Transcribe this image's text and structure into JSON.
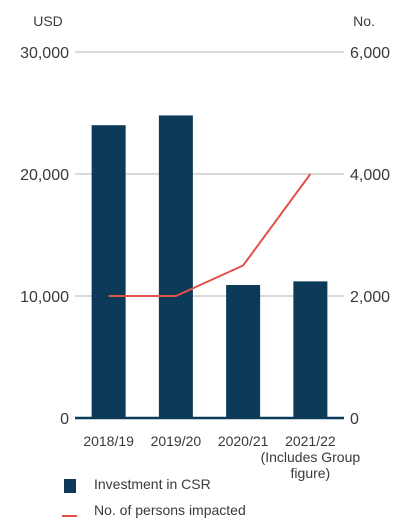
{
  "chart_data": {
    "type": "bar",
    "categories": [
      "2018/19",
      "2019/20",
      "2020/21",
      "2021/22 (Includes Group figure)"
    ],
    "category_labels": [
      [
        "2018/19"
      ],
      [
        "2019/20"
      ],
      [
        "2020/21"
      ],
      [
        "2021/22",
        "(Includes Group",
        "figure)"
      ]
    ],
    "series": [
      {
        "name": "Investment in CSR",
        "type": "bar",
        "axis": "left",
        "color": "#0e3a5a",
        "values": [
          24000,
          24800,
          10900,
          11200
        ]
      },
      {
        "name": "No. of persons impacted",
        "type": "line",
        "axis": "right",
        "color": "#e0524a",
        "values": [
          2000,
          2000,
          2500,
          4000
        ]
      }
    ],
    "y_left": {
      "unit": "USD",
      "ylim": [
        0,
        30000
      ],
      "ticks": [
        0,
        10000,
        20000,
        30000
      ],
      "tick_labels": [
        "0",
        "10,000",
        "20,000",
        "30,000"
      ]
    },
    "y_right": {
      "unit": "No.",
      "ylim": [
        0,
        6000
      ],
      "ticks": [
        0,
        2000,
        4000,
        6000
      ],
      "tick_labels": [
        "0",
        "2,000",
        "4,000",
        "6,000"
      ]
    },
    "grid": true,
    "legend_position": "bottom"
  },
  "colors": {
    "axis": "#0e3a5a",
    "grid": "#b5b5b5",
    "text": "#3a3a3a"
  }
}
